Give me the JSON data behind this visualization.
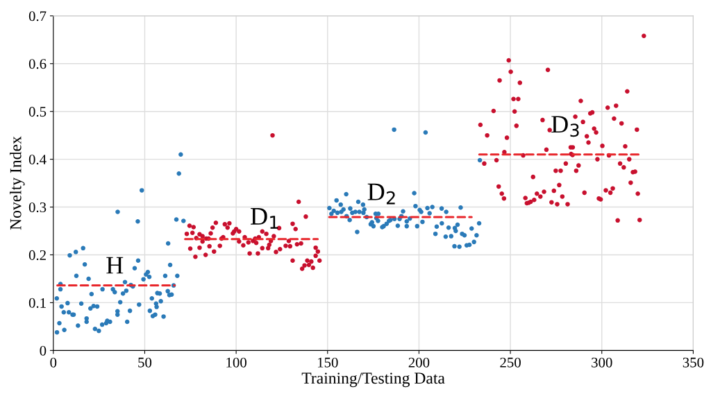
{
  "chart_data": {
    "type": "scatter",
    "xlabel": "Training/Testing Data",
    "ylabel": "Novelty Index",
    "xlim": [
      0,
      350
    ],
    "ylim": [
      0,
      0.7
    ],
    "xticks": [
      0,
      50,
      100,
      150,
      200,
      250,
      300,
      350
    ],
    "yticks": [
      0,
      0.1,
      0.2,
      0.3,
      0.4,
      0.5,
      0.6,
      0.7
    ],
    "grid": true,
    "series": [
      {
        "marker": "circle",
        "color": "#2a7ab8",
        "x": [
          2.0,
          1.9,
          3.3,
          3.9,
          3.9,
          4.5,
          5.7,
          6.0,
          7.8,
          8.5,
          9.0,
          10.5,
          11.1,
          12.3,
          12.6,
          13.5,
          15.3,
          16.3,
          17.2,
          18.2,
          18.2,
          19.3,
          20.3,
          20.9,
          22.0,
          22.8,
          24.0,
          24.9,
          26.7,
          26.9,
          28.9,
          29.5,
          31.0,
          32.6,
          33.6,
          35.1,
          35.1,
          35.2,
          36.6,
          38.1,
          39.2,
          39.9,
          40.4,
          41.9,
          42.4,
          43.5,
          44.5,
          46.2,
          46.4,
          46.9,
          48.4,
          49.3,
          50.7,
          51.7,
          52.5,
          52.8,
          53.9,
          54.4,
          55.7,
          56.2,
          56.5,
          56.9,
          58.2,
          58.8,
          60.3,
          61.2,
          62.6,
          62.8,
          63.5,
          63.9,
          64.7,
          65.8,
          67.3,
          67.8,
          68.7,
          69.7,
          71.2,
          151.0,
          152.1,
          153.4,
          154.9,
          155.4,
          157.2,
          157.5,
          158.7,
          160.2,
          160.4,
          162.1,
          162.4,
          163.5,
          165.2,
          166.2,
          166.8,
          167.4,
          169.4,
          169.6,
          170.1,
          171.4,
          173.6,
          174.3,
          175.1,
          176.3,
          176.7,
          177.6,
          177.8,
          179.9,
          180.7,
          182.3,
          183.6,
          184.4,
          186.4,
          186.6,
          188.4,
          189.4,
          190.4,
          191.3,
          193.3,
          193.3,
          195.0,
          197.4,
          198.1,
          199.0,
          200.4,
          201.2,
          201.9,
          203.6,
          204.6,
          205.8,
          207.3,
          209.0,
          209.7,
          212.4,
          212.5,
          214.9,
          214.6,
          216.2,
          217.6,
          219.4,
          219.6,
          220.1,
          221.1,
          222.1,
          222.8,
          223.6,
          224.9,
          226.1,
          227.6,
          228.8,
          230.1,
          231.5,
          232.9,
          233.3
        ],
        "values": [
          0.038,
          0.109,
          0.057,
          0.139,
          0.128,
          0.092,
          0.08,
          0.043,
          0.099,
          0.08,
          0.199,
          0.075,
          0.075,
          0.206,
          0.156,
          0.052,
          0.098,
          0.214,
          0.18,
          0.067,
          0.06,
          0.15,
          0.088,
          0.118,
          0.093,
          0.045,
          0.092,
          0.041,
          0.054,
          0.128,
          0.057,
          0.062,
          0.06,
          0.128,
          0.122,
          0.082,
          0.075,
          0.29,
          0.101,
          0.119,
          0.143,
          0.125,
          0.06,
          0.083,
          0.137,
          0.134,
          0.172,
          0.27,
          0.188,
          0.096,
          0.335,
          0.149,
          0.159,
          0.164,
          0.154,
          0.083,
          0.109,
          0.072,
          0.075,
          0.098,
          0.091,
          0.12,
          0.119,
          0.103,
          0.071,
          0.156,
          0.124,
          0.224,
          0.116,
          0.179,
          0.117,
          0.136,
          0.274,
          0.156,
          0.37,
          0.41,
          0.271,
          0.298,
          0.286,
          0.292,
          0.314,
          0.288,
          0.305,
          0.29,
          0.295,
          0.327,
          0.281,
          0.273,
          0.297,
          0.288,
          0.29,
          0.248,
          0.311,
          0.29,
          0.305,
          0.288,
          0.295,
          0.279,
          0.264,
          0.268,
          0.26,
          0.286,
          0.277,
          0.271,
          0.286,
          0.258,
          0.26,
          0.265,
          0.271,
          0.273,
          0.462,
          0.275,
          0.261,
          0.275,
          0.281,
          0.291,
          0.26,
          0.27,
          0.276,
          0.329,
          0.302,
          0.26,
          0.294,
          0.29,
          0.269,
          0.456,
          0.298,
          0.287,
          0.3,
          0.244,
          0.259,
          0.297,
          0.266,
          0.29,
          0.238,
          0.257,
          0.239,
          0.218,
          0.256,
          0.25,
          0.263,
          0.217,
          0.299,
          0.244,
          0.241,
          0.22,
          0.221,
          0.255,
          0.227,
          0.241,
          0.266,
          0.398
        ]
      },
      {
        "marker": "circle",
        "color": "#c8102e",
        "x": [
          73.0,
          74.5,
          76.1,
          76.7,
          74.9,
          77.7,
          78.2,
          80.0,
          80.0,
          81.6,
          81.6,
          83.3,
          83.6,
          84.9,
          85.4,
          86.1,
          87.1,
          87.9,
          88.9,
          91.1,
          92.0,
          92.9,
          93.8,
          95.3,
          96.3,
          98.2,
          98.9,
          100.0,
          101.6,
          101.6,
          103.9,
          104.7,
          106.7,
          107.4,
          109.2,
          110.4,
          111.0,
          111.9,
          112.4,
          114.3,
          114.3,
          116.5,
          117.5,
          118.1,
          119.0,
          119.9,
          120.6,
          121.8,
          123.5,
          124.0,
          127.1,
          128.8,
          129.5,
          130.9,
          130.9,
          132.5,
          133.3,
          134.2,
          135.5,
          136.1,
          137.4,
          138.1,
          138.9,
          139.8,
          141.1,
          142.0,
          143.5,
          143.5,
          144.7,
          145.6,
          235.7,
          233.6,
          237.3,
          240.8,
          242.4,
          243.6,
          244.1,
          245.3,
          246.5,
          246.7,
          248.1,
          249.1,
          250.2,
          251.7,
          252.3,
          253.3,
          254.3,
          255.2,
          257.0,
          258.2,
          259.0,
          260.0,
          261.1,
          262.4,
          263.0,
          264.5,
          266.4,
          267.6,
          268.4,
          269.7,
          270.5,
          271.5,
          272.5,
          273.8,
          274.8,
          275.6,
          276.7,
          277.5,
          278.4,
          280.3,
          281.3,
          283.0,
          283.2,
          284.1,
          284.0,
          285.5,
          286.0,
          287.3,
          288.5,
          289.7,
          290.5,
          291.8,
          292.7,
          293.7,
          294.8,
          295.8,
          296.9,
          297.6,
          298.4,
          299.4,
          300.3,
          302.2,
          303.2,
          303.9,
          304.7,
          306.0,
          306.7,
          307.8,
          308.7,
          310.0,
          310.8,
          312.0,
          312.8,
          313.9,
          315.0,
          315.8,
          317.0,
          318.2,
          319.2,
          319.7,
          320.7,
          323.0
        ],
        "values": [
          0.244,
          0.261,
          0.246,
          0.258,
          0.213,
          0.196,
          0.235,
          0.243,
          0.215,
          0.239,
          0.228,
          0.2,
          0.234,
          0.234,
          0.218,
          0.245,
          0.257,
          0.207,
          0.267,
          0.219,
          0.234,
          0.237,
          0.264,
          0.257,
          0.266,
          0.245,
          0.249,
          0.254,
          0.249,
          0.228,
          0.22,
          0.237,
          0.226,
          0.203,
          0.229,
          0.234,
          0.225,
          0.203,
          0.237,
          0.249,
          0.214,
          0.244,
          0.214,
          0.221,
          0.229,
          0.45,
          0.239,
          0.206,
          0.256,
          0.212,
          0.219,
          0.229,
          0.218,
          0.188,
          0.265,
          0.254,
          0.222,
          0.311,
          0.224,
          0.171,
          0.178,
          0.28,
          0.188,
          0.179,
          0.186,
          0.173,
          0.215,
          0.198,
          0.207,
          0.188,
          0.391,
          0.472,
          0.45,
          0.501,
          0.398,
          0.343,
          0.565,
          0.328,
          0.318,
          0.415,
          0.445,
          0.607,
          0.583,
          0.526,
          0.5,
          0.47,
          0.526,
          0.56,
          0.408,
          0.319,
          0.308,
          0.309,
          0.311,
          0.363,
          0.315,
          0.328,
          0.322,
          0.482,
          0.332,
          0.42,
          0.587,
          0.461,
          0.31,
          0.334,
          0.376,
          0.306,
          0.346,
          0.376,
          0.322,
          0.391,
          0.306,
          0.425,
          0.411,
          0.425,
          0.409,
          0.489,
          0.376,
          0.387,
          0.522,
          0.478,
          0.33,
          0.448,
          0.435,
          0.496,
          0.498,
          0.464,
          0.456,
          0.4,
          0.318,
          0.316,
          0.428,
          0.335,
          0.508,
          0.408,
          0.33,
          0.339,
          0.485,
          0.512,
          0.272,
          0.391,
          0.475,
          0.383,
          0.427,
          0.542,
          0.4,
          0.351,
          0.373,
          0.374,
          0.462,
          0.328,
          0.273,
          0.658
        ]
      },
      {
        "type": "line",
        "color": "#e8262b",
        "line_style": "dashed",
        "x": [
          2.2,
          66.4
        ],
        "values": [
          0.136,
          0.136
        ]
      },
      {
        "type": "line",
        "color": "#e8262b",
        "line_style": "dashed",
        "x": [
          72.1,
          144.6
        ],
        "values": [
          0.233,
          0.233
        ]
      },
      {
        "type": "line",
        "color": "#e8262b",
        "line_style": "dashed",
        "x": [
          150.9,
          228.8
        ],
        "values": [
          0.279,
          0.279
        ]
      },
      {
        "type": "line",
        "color": "#e8262b",
        "line_style": "dashed",
        "x": [
          233.0,
          320.8
        ],
        "values": [
          0.41,
          0.41
        ]
      }
    ],
    "annotations": [
      "H",
      "D$_{1}$",
      "D$_{2}$",
      "D$_{3}$"
    ]
  }
}
